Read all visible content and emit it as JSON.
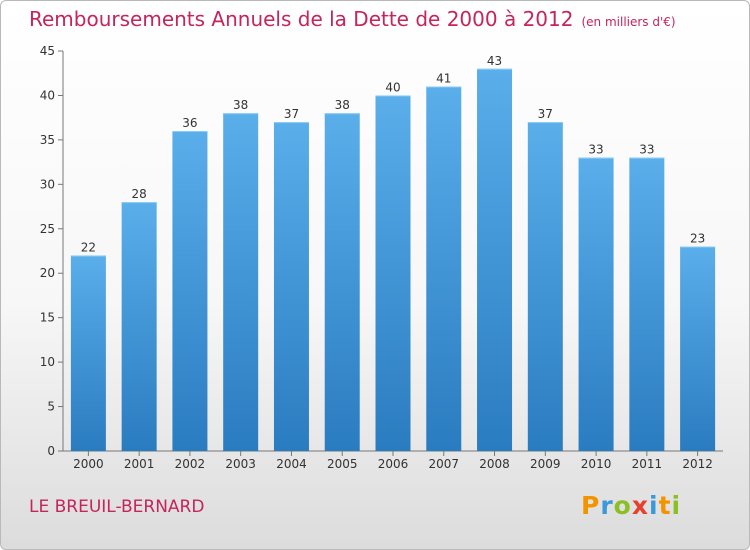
{
  "header": {
    "title": "Remboursements Annuels de la Dette de 2000 à 2012",
    "unit": "(en milliers d'€)"
  },
  "footer": {
    "commune": "LE BREUIL-BERNARD",
    "brand_letters": [
      "P",
      "r",
      "o",
      "x",
      "i",
      "t",
      "i"
    ]
  },
  "colors": {
    "title": "#c5245c",
    "bar_top": "#5aaeea",
    "bar_bottom": "#2a7cc0"
  },
  "chart_data": {
    "type": "bar",
    "title": "Remboursements Annuels de la Dette de 2000 à 2012",
    "xlabel": "",
    "ylabel": "",
    "categories": [
      "2000",
      "2001",
      "2002",
      "2003",
      "2004",
      "2005",
      "2006",
      "2007",
      "2008",
      "2009",
      "2010",
      "2011",
      "2012"
    ],
    "values": [
      22,
      28,
      36,
      38,
      37,
      38,
      40,
      41,
      43,
      37,
      33,
      33,
      23
    ],
    "ylim": [
      0,
      45
    ],
    "yticks": [
      0,
      5,
      10,
      15,
      20,
      25,
      30,
      35,
      40,
      45
    ],
    "grid": false,
    "legend": "none"
  }
}
